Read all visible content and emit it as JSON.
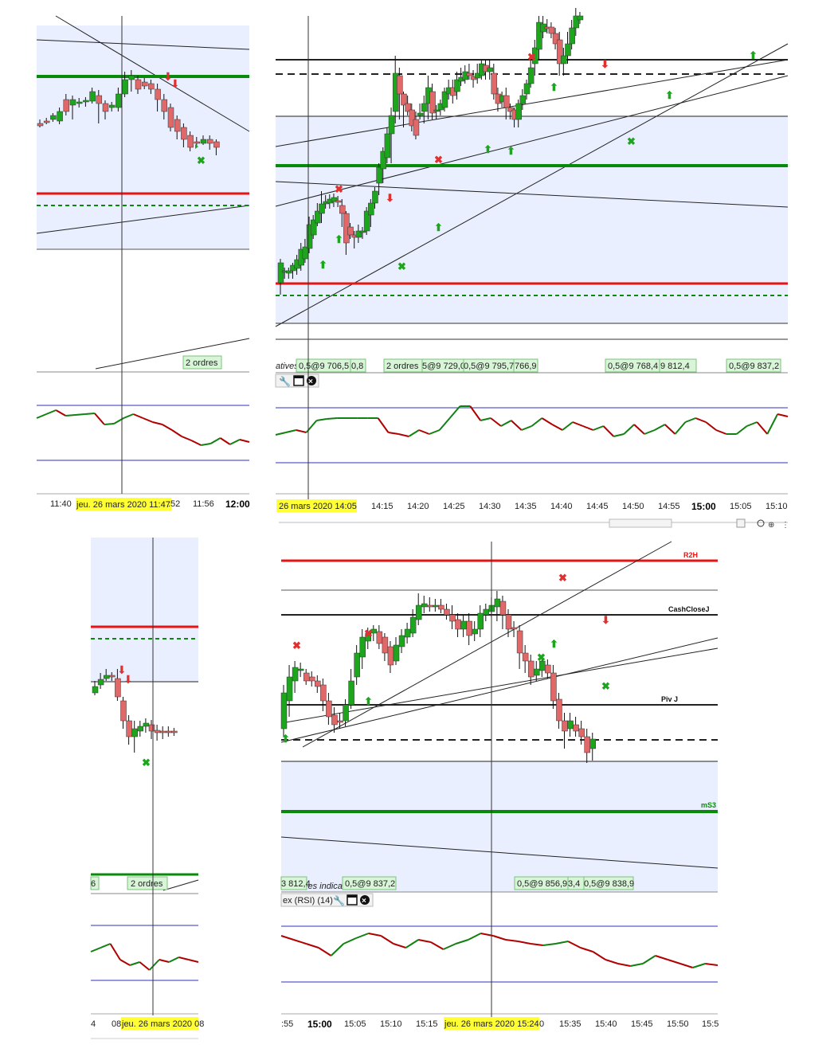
{
  "colors": {
    "panel_bg": "#e9efff",
    "up": "#1ea51e",
    "down": "#e06868",
    "red_line": "#e81414",
    "green_line": "#0a8a0a",
    "rsi_up": "#108010",
    "rsi_down": "#b00000",
    "rsi_band": "#3030c0",
    "highlight": "#ffff33",
    "order_box": "#d8f5d8"
  },
  "panel_top_left": {
    "axis_labels": [
      "11:40",
      "11:56"
    ],
    "axis_bold": "12:00",
    "crosshair_date": "jeu. 26 mars 2020 11:47",
    "crosshair_suffix": ":52",
    "orders": [
      "2 ordres"
    ]
  },
  "panel_top_right": {
    "legend_text": "atives",
    "axis_labels": [
      "14:15",
      "14:20",
      "14:25",
      "14:30",
      "14:35",
      "14:40",
      "14:45",
      "14:50",
      "14:55",
      "15:05",
      "15:10"
    ],
    "axis_bold": "15:00",
    "crosshair_date": "26 mars 2020 14:05",
    "orders": [
      "0,5@9 706,5",
      "0,8",
      "2 ordres",
      "5@9 729,0",
      "0,5@9 795,7",
      "766,9",
      "0,5@9 768,4",
      "9 812,4",
      "0,5@9 837,2"
    ],
    "toolbar_icons": [
      "wrench-icon",
      "window-icon",
      "close-icon"
    ]
  },
  "panel_bottom_left": {
    "axis_labels": [
      "4",
      "08"
    ],
    "crosshair_date": "jeu. 26 mars 2020 08",
    "orders": [
      "6",
      "2 ordres"
    ]
  },
  "panel_bottom_right": {
    "level_labels": {
      "r2h": "R2H",
      "cashclose": "CashCloseJ",
      "piv": "Piv J",
      "ms3": "mS3"
    },
    "legend_text": "onnées indicatives",
    "rsi_title": "ex (RSI) (14)",
    "axis_labels": [
      ":55",
      "15:05",
      "15:10",
      "15:15",
      "15:35",
      "15:40",
      "15:45",
      "15:50",
      "15:5"
    ],
    "axis_bold": "15:00",
    "crosshair_date": "jeu. 26 mars 2020 15:24",
    "crosshair_suffix": "0",
    "orders": [
      "3 812,4",
      "0,5@9 837,2",
      "0,5@9 856,9",
      "3,4",
      "0,5@9 838,9"
    ],
    "toolbar_icons": [
      "wrench-icon",
      "window-icon",
      "close-icon"
    ]
  }
}
